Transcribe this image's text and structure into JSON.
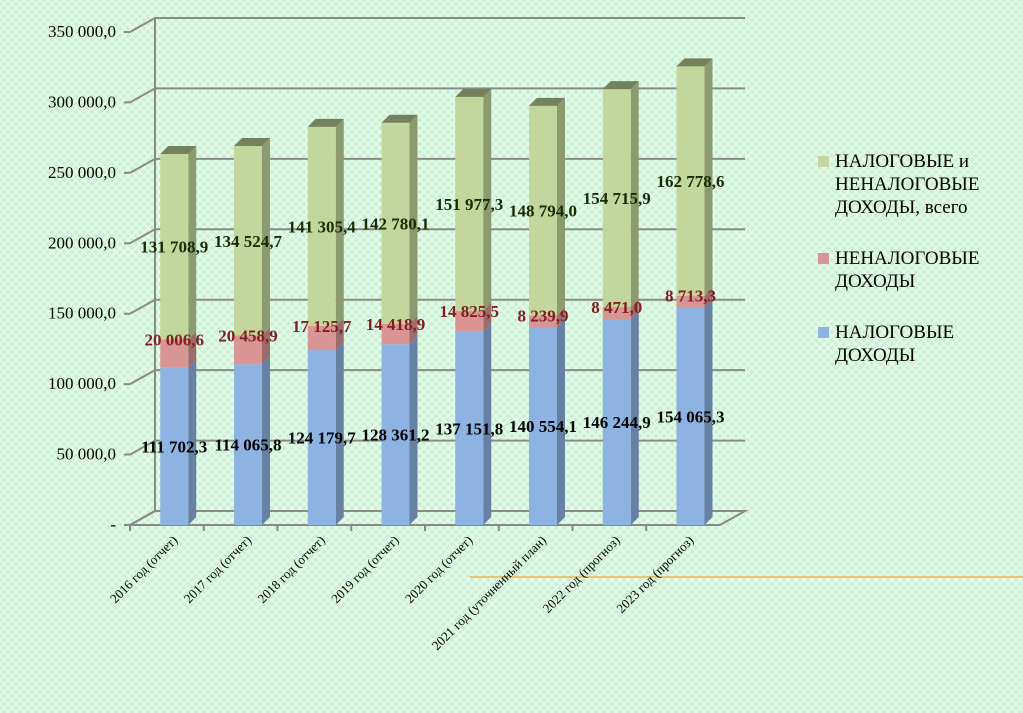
{
  "chart_data": {
    "type": "bar3d_stacked",
    "categories": [
      "2016 год (отчет)",
      "2017 год (отчет)",
      "2018 год (отчет)",
      "2019 год (отчет)",
      "2020 год  (отчет)",
      "2021 год  (уточненный план)",
      "2022 год  (прогноз)",
      "2023 год  (прогноз)"
    ],
    "series": [
      {
        "name": "НАЛОГОВЫЕ ДОХОДЫ",
        "color": "#8db3e2",
        "values": [
          111702.3,
          114065.8,
          124179.7,
          128361.2,
          137151.8,
          140554.1,
          146244.9,
          154065.3
        ],
        "value_labels": [
          "111 702,3",
          "114 065,8",
          "124 179,7",
          "128 361,2",
          "137 151,8",
          "140 554,1",
          "146 244,9",
          "154 065,3"
        ]
      },
      {
        "name": "НЕНАЛОГОВЫЕ ДОХОДЫ",
        "color": "#d99594",
        "values": [
          20006.6,
          20458.9,
          17125.7,
          14418.9,
          14825.5,
          8239.9,
          8471.0,
          8713.3
        ],
        "value_labels": [
          "20 006,6",
          "20 458,9",
          "17 125,7",
          "14 418,9",
          "14 825,5",
          "8 239,9",
          "8 471,0",
          "8 713,3"
        ]
      },
      {
        "name": "НАЛОГОВЫЕ и НЕНАЛОГОВЫЕ ДОХОДЫ, всего",
        "color": "#c3d69b",
        "values": [
          131708.9,
          134524.7,
          141305.4,
          142780.1,
          151977.3,
          148794.0,
          154715.9,
          162778.6
        ],
        "value_labels": [
          "131 708,9",
          "134 524,7",
          "141 305,4",
          "142 780,1",
          "151 977,3",
          "148 794,0",
          "154 715,9",
          "162 778,6"
        ]
      }
    ],
    "ylim": [
      0,
      350000
    ],
    "yticks": [
      {
        "value": 0,
        "label": "-"
      },
      {
        "value": 50000,
        "label": "50 000,0"
      },
      {
        "value": 100000,
        "label": "100 000,0"
      },
      {
        "value": 150000,
        "label": "150 000,0"
      },
      {
        "value": 200000,
        "label": "200 000,0"
      },
      {
        "value": 250000,
        "label": "250 000,0"
      },
      {
        "value": 300000,
        "label": "300 000,0"
      },
      {
        "value": 350000,
        "label": "350 000,0"
      }
    ],
    "grid": true,
    "legend": "right"
  }
}
